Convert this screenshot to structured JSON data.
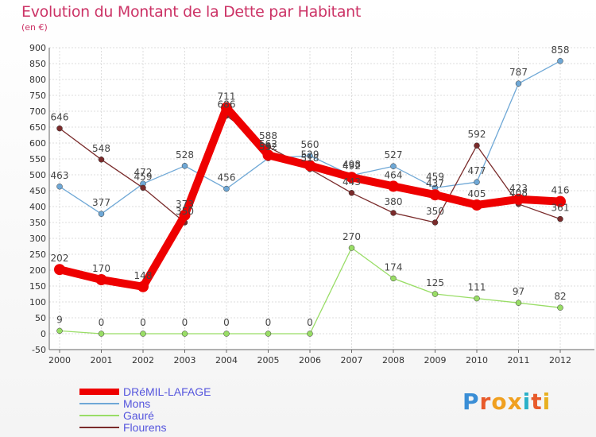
{
  "chart_data": {
    "type": "line",
    "title": "Evolution du Montant de la Dette par Habitant",
    "subtitle": "(en €)",
    "xlabel": "",
    "ylabel": "",
    "x": [
      "2000",
      "2001",
      "2002",
      "2003",
      "2004",
      "2005",
      "2006",
      "2007",
      "2008",
      "2009",
      "2010",
      "2011",
      "2012"
    ],
    "ylim": [
      -50,
      900
    ],
    "yticks": [
      "-50",
      "0",
      "50",
      "100",
      "150",
      "200",
      "250",
      "300",
      "350",
      "400",
      "450",
      "500",
      "550",
      "600",
      "650",
      "700",
      "750",
      "800",
      "850",
      "900"
    ],
    "grid": true,
    "legend_position": "bottom-left",
    "series": [
      {
        "name": "DRéMIL-LAFAGE",
        "color": "#ee0000",
        "values": [
          202,
          170,
          148,
          373,
          711,
          562,
          529,
          492,
          464,
          437,
          405,
          423,
          416
        ],
        "labels": [
          "202",
          "170",
          "148",
          "373",
          "711",
          "562",
          "529",
          "492",
          "464",
          "437",
          "405",
          "423",
          "416"
        ]
      },
      {
        "name": "Mons",
        "color": "#6fa8d6",
        "values": [
          463,
          377,
          472,
          528,
          456,
          552,
          560,
          498,
          527,
          459,
          477,
          787,
          858
        ],
        "labels": [
          "463",
          "377",
          "472",
          "528",
          "456",
          "552",
          "560",
          "498",
          "527",
          "459",
          "477",
          "787",
          "858"
        ]
      },
      {
        "name": "Gauré",
        "color": "#99dd66",
        "values": [
          9,
          0,
          0,
          0,
          0,
          0,
          0,
          270,
          174,
          125,
          111,
          97,
          82
        ],
        "labels": [
          "9",
          "0",
          "0",
          "0",
          "0",
          "0",
          "0",
          "270",
          "174",
          "125",
          "111",
          "97",
          "82"
        ]
      },
      {
        "name": "Flourens",
        "color": "#7a2b2b",
        "values": [
          646,
          548,
          459,
          350,
          686,
          588,
          518,
          443,
          380,
          350,
          592,
          408,
          361
        ],
        "labels": [
          "646",
          "548",
          "459",
          "350",
          "686",
          "588",
          "518",
          "443",
          "380",
          "350",
          "592",
          "408",
          "361"
        ]
      }
    ]
  },
  "branding": {
    "logo_text": "Proxiti"
  }
}
